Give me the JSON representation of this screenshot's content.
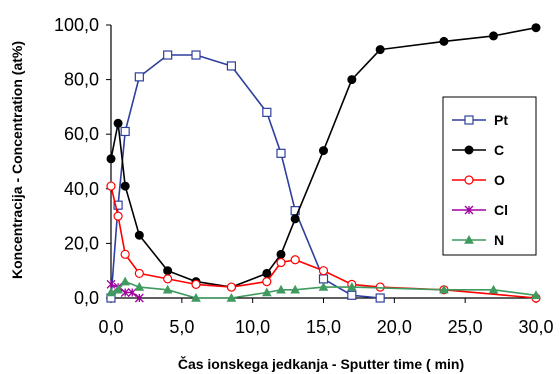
{
  "chart_data": {
    "type": "line",
    "xlabel": "Čas ionskega jedkanja - Sputter time ( min)",
    "ylabel": "Koncentracija - Concentration (at%)",
    "xlim": [
      0,
      30
    ],
    "ylim": [
      0,
      100
    ],
    "x_ticks": [
      "0,0",
      "5,0",
      "10,0",
      "15,0",
      "20,0",
      "25,0",
      "30,0"
    ],
    "y_ticks": [
      "0,0",
      "20,0",
      "40,0",
      "60,0",
      "80,0",
      "100,0"
    ],
    "grid": false,
    "legend_position": "right",
    "series": [
      {
        "name": "Pt",
        "color": "#2e3f9e",
        "marker": "square-open",
        "x": [
          0,
          0.5,
          1,
          2,
          4,
          6,
          8.5,
          11,
          12,
          13,
          15,
          17,
          19
        ],
        "y": [
          0,
          34,
          61,
          81,
          89,
          89,
          85,
          68,
          53,
          32,
          7,
          1,
          0
        ]
      },
      {
        "name": "C",
        "color": "#000000",
        "marker": "circle-filled",
        "x": [
          0,
          0.5,
          1,
          2,
          4,
          6,
          8.5,
          11,
          12,
          13,
          15,
          17,
          19,
          23.5,
          27,
          30
        ],
        "y": [
          51,
          64,
          41,
          23,
          10,
          6,
          4,
          9,
          16,
          29,
          54,
          80,
          91,
          94,
          96,
          99
        ]
      },
      {
        "name": "O",
        "color": "#ff0000",
        "marker": "circle-open",
        "x": [
          0,
          0.5,
          1,
          2,
          4,
          6,
          8.5,
          11,
          12,
          13,
          15,
          17,
          19,
          23.5,
          30
        ],
        "y": [
          41,
          30,
          16,
          9,
          7,
          5,
          4,
          6,
          13,
          14,
          10,
          5,
          4,
          3,
          0
        ]
      },
      {
        "name": "Cl",
        "color": "#a000a0",
        "marker": "star",
        "x": [
          0,
          0.5,
          1,
          1.5,
          2
        ],
        "y": [
          5,
          4,
          2,
          2,
          0
        ]
      },
      {
        "name": "N",
        "color": "#3f9a5f",
        "marker": "triangle-filled",
        "x": [
          0,
          0.5,
          1,
          2,
          4,
          6,
          8.5,
          11,
          12,
          13,
          15,
          17,
          23.5,
          27,
          30
        ],
        "y": [
          2,
          3,
          6,
          4,
          3,
          0,
          0,
          2,
          3,
          3,
          4,
          4,
          3,
          3,
          1
        ]
      }
    ]
  }
}
